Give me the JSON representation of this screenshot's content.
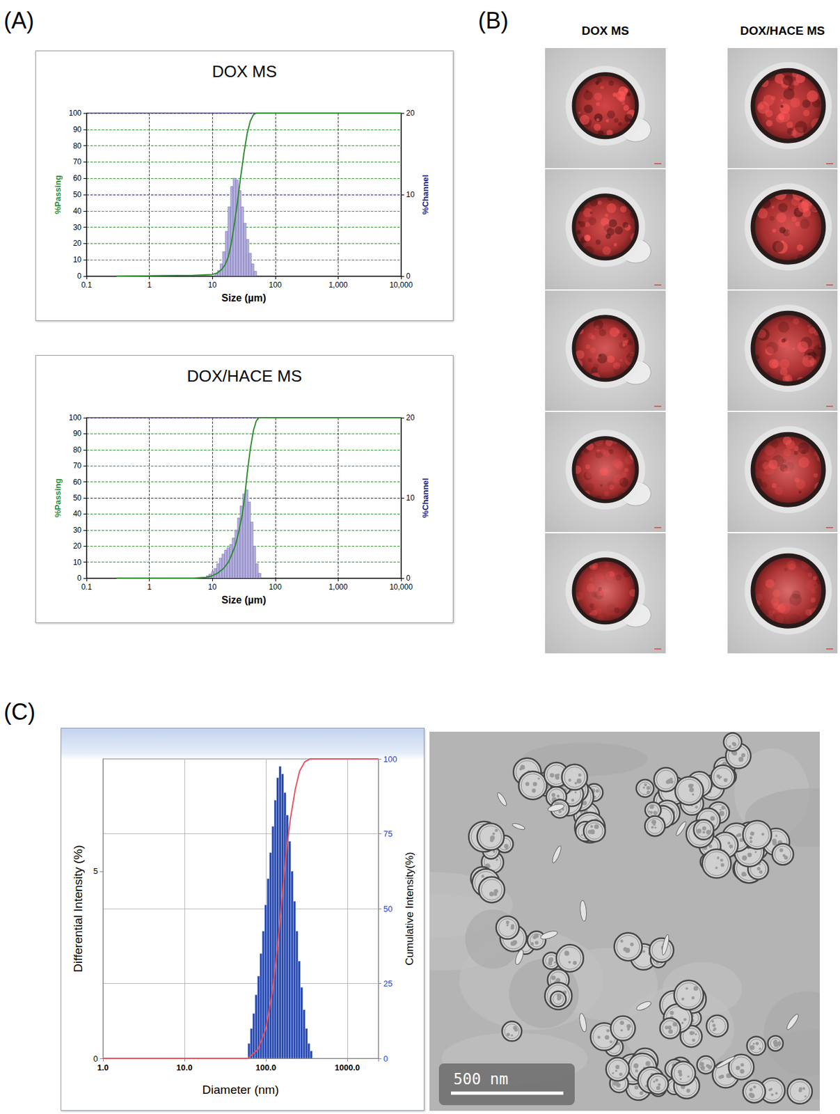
{
  "panel_labels": [
    "(A)",
    "(B)",
    "(C)"
  ],
  "chart_data": [
    {
      "type": "histogram",
      "title": "DOX MS",
      "x_label": "Size (µm)",
      "y_label": "%Passing",
      "y2_label": "%Channel",
      "log": "x",
      "grid": true,
      "xlim": [
        0.1,
        10000
      ],
      "xticks": [
        0.1,
        1,
        10,
        100,
        {
          "value": 1000,
          "label": "1,000"
        },
        {
          "value": 10000,
          "label": "10,000"
        }
      ],
      "ylim": [
        0,
        100
      ],
      "yticks": [
        0,
        10,
        20,
        30,
        40,
        50,
        60,
        70,
        80,
        90,
        100
      ],
      "y2lim": [
        0,
        20
      ],
      "y2ticks": [
        0,
        10,
        20
      ],
      "series": [
        {
          "type": "histogram",
          "axis": "y2",
          "color": "#b4b0dc",
          "bins": [
            11,
            12.1,
            13.3,
            14.6,
            16.1,
            17.7,
            19.5,
            21.4,
            23.6,
            25.9,
            28.5,
            31.4,
            34.5,
            38.0,
            41.8,
            45.9,
            50.5
          ],
          "values": [
            0.3,
            0.7,
            1.5,
            3.0,
            5.5,
            8.5,
            11.0,
            12.0,
            11.8,
            10.5,
            8.5,
            6.5,
            4.5,
            2.8,
            1.5,
            0.6
          ]
        },
        {
          "type": "line",
          "color": "#2e8b2e",
          "x": [
            0.3,
            1,
            5,
            10,
            12,
            14,
            16,
            18,
            20,
            22,
            25,
            28,
            32,
            36,
            40,
            45,
            50,
            100,
            1000,
            10000
          ],
          "values": [
            0,
            0.2,
            0.5,
            1,
            2,
            4,
            7,
            12,
            20,
            30,
            45,
            60,
            76,
            88,
            95,
            99,
            100,
            100,
            100,
            100
          ]
        }
      ]
    },
    {
      "type": "histogram",
      "title": "DOX/HACE MS",
      "x_label": "Size (µm)",
      "y_label": "%Passing",
      "y2_label": "%Channel",
      "log": "x",
      "grid": true,
      "xlim": [
        0.1,
        10000
      ],
      "xticks": [
        0.1,
        1,
        10,
        100,
        {
          "value": 1000,
          "label": "1,000"
        },
        {
          "value": 10000,
          "label": "10,000"
        }
      ],
      "ylim": [
        0,
        100
      ],
      "yticks": [
        0,
        10,
        20,
        30,
        40,
        50,
        60,
        70,
        80,
        90,
        100
      ],
      "y2lim": [
        0,
        20
      ],
      "y2ticks": [
        0,
        10,
        20
      ],
      "series": [
        {
          "type": "histogram",
          "axis": "y2",
          "color": "#b4b0dc",
          "bins": [
            8,
            8.8,
            9.7,
            10.6,
            11.7,
            12.9,
            14.2,
            15.6,
            17.1,
            18.9,
            20.7,
            22.8,
            25.1,
            27.6,
            30.4,
            33.4,
            36.8,
            40.4,
            44.5,
            48.9,
            53.8,
            59.2
          ],
          "values": [
            0.3,
            0.5,
            0.8,
            1.2,
            1.8,
            2.5,
            3.0,
            3.5,
            3.8,
            4.2,
            5.0,
            6.0,
            7.5,
            9.0,
            10.5,
            11.0,
            9.5,
            7.0,
            4.0,
            1.8,
            0.6
          ]
        },
        {
          "type": "line",
          "color": "#2e8b2e",
          "x": [
            0.3,
            1,
            5,
            8,
            10,
            12,
            15,
            18,
            20,
            23,
            26,
            30,
            33,
            36,
            40,
            45,
            50,
            55,
            100,
            1000,
            10000
          ],
          "values": [
            0,
            0,
            0,
            0.5,
            1.5,
            3,
            6,
            10,
            14,
            20,
            28,
            40,
            52,
            66,
            80,
            92,
            98,
            100,
            100,
            100,
            100
          ]
        }
      ]
    },
    {
      "type": "histogram",
      "x_label": "Diameter (nm)",
      "y_label": "Differential Intensity (%)",
      "y2_label": "Cumulative Intensity(%)",
      "log": "x",
      "grid": true,
      "xlim": [
        1,
        2400
      ],
      "xticks": [
        {
          "value": 1,
          "label": "1.0"
        },
        {
          "value": 10,
          "label": "10.0"
        },
        {
          "value": 100,
          "label": "100.0"
        },
        {
          "value": 1000,
          "label": "1000.0"
        }
      ],
      "ylim": [
        0,
        8
      ],
      "yticks": [
        0,
        5
      ],
      "y2lim": [
        0,
        100
      ],
      "y2ticks": [
        0,
        25,
        50,
        75,
        100
      ],
      "series": [
        {
          "type": "line",
          "axis": "y2",
          "color": "#e8505b",
          "x": [
            1,
            60,
            80,
            100,
            120,
            140,
            160,
            180,
            200,
            230,
            260,
            300,
            350,
            400,
            2400
          ],
          "values": [
            0,
            0,
            3,
            10,
            22,
            38,
            55,
            70,
            80,
            90,
            96,
            99,
            100,
            100,
            100
          ]
        },
        {
          "type": "histogram",
          "color": "#2447b0",
          "bins": [
            60,
            64.2,
            68.7,
            73.5,
            78.6,
            84.1,
            90.0,
            96.3,
            103.1,
            110.3,
            118.0,
            126.3,
            135.1,
            144.6,
            154.7,
            165.5,
            177.1,
            189.5,
            202.8,
            217.0,
            232.2,
            248.4,
            265.8,
            284.4,
            304.3,
            325.6,
            348.4,
            372.8
          ],
          "values": [
            0.4,
            0.8,
            1.2,
            1.7,
            2.2,
            2.8,
            3.4,
            4.1,
            4.8,
            5.5,
            6.2,
            6.9,
            7.5,
            7.8,
            7.6,
            7.1,
            6.5,
            5.8,
            5.0,
            4.2,
            3.4,
            2.6,
            1.9,
            1.3,
            0.8,
            0.4,
            0.2
          ]
        }
      ]
    }
  ],
  "micrographs": {
    "columns": [
      "DOX MS",
      "DOX/HACE MS"
    ],
    "rows": 5
  },
  "tem_image": {
    "scale_bar": "500 nm"
  }
}
